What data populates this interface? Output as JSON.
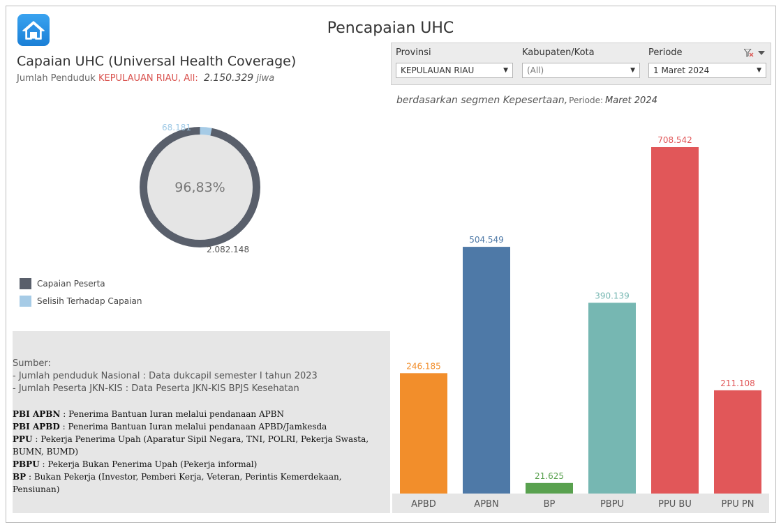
{
  "header": {
    "title": "Pencapaian UHC",
    "home_icon": "home-icon"
  },
  "summary": {
    "title": "Capaian UHC (Universal Health Coverage)",
    "population_label": "Jumlah Penduduk",
    "province": "KEPULAUAN RIAU, All:",
    "population_value": "2.150.329",
    "population_unit": "jiwa"
  },
  "filters": {
    "provinsi": {
      "label": "Provinsi",
      "value": "KEPULAUAN RIAU"
    },
    "kabupaten": {
      "label": "Kabupaten/Kota",
      "value": "(All)"
    },
    "periode": {
      "label": "Periode",
      "value": "1 Maret 2024"
    }
  },
  "segment_caption": {
    "text": "berdasarkan segmen Kepesertaan,",
    "period_label": "Periode:",
    "period_value": "Maret 2024"
  },
  "donut": {
    "center_label": "96,83%",
    "achieved_label": "2.082.148",
    "gap_label": "68.181",
    "achieved_value": 2082148,
    "gap_value": 68181,
    "colors": {
      "achieved": "#595f6b",
      "gap": "#a6cbe6",
      "center": "#e5e5e5"
    }
  },
  "legend": [
    {
      "label": "Capaian Peserta",
      "color": "#595f6b"
    },
    {
      "label": "Selisih Terhadap Capaian",
      "color": "#a6cbe6"
    }
  ],
  "sources": {
    "heading": "Sumber:",
    "lines": [
      "- Jumlah penduduk Nasional : Data dukcapil semester I tahun 2023",
      "- Jumlah Peserta JKN-KIS : Data Peserta JKN-KIS BPJS Kesehatan"
    ],
    "glossary": [
      {
        "term": "PBI APBN",
        "desc": " : Penerima Bantuan Iuran melalui pendanaan APBN"
      },
      {
        "term": "PBI APBD",
        "desc": " : Penerima Bantuan Iuran melalui pendanaan APBD/Jamkesda"
      },
      {
        "term": "PPU",
        "desc": " : Pekerja Penerima Upah (Aparatur Sipil Negara, TNI, POLRI, Pekerja Swasta, BUMN, BUMD)"
      },
      {
        "term": "PBPU",
        "desc": " : Pekerja Bukan Penerima Upah (Pekerja informal)"
      },
      {
        "term": "BP",
        "desc": " : Bukan Pekerja (Investor, Pemberi Kerja, Veteran, Perintis Kemerdekaan, Pensiunan)"
      }
    ]
  },
  "chart_data": {
    "type": "bar",
    "categories": [
      "APBD",
      "APBN",
      "BP",
      "PBPU",
      "PPU BU",
      "PPU PN"
    ],
    "values": [
      246185,
      504549,
      21625,
      390139,
      708542,
      211108
    ],
    "value_labels": [
      "246.185",
      "504.549",
      "21.625",
      "390.139",
      "708.542",
      "211.108"
    ],
    "colors": [
      "#f28e2b",
      "#4e79a7",
      "#59a14f",
      "#76b7b2",
      "#e15759",
      "#e15759"
    ],
    "ylim": [
      0,
      708542
    ],
    "grid": false,
    "title": "",
    "xlabel": "",
    "ylabel": ""
  }
}
